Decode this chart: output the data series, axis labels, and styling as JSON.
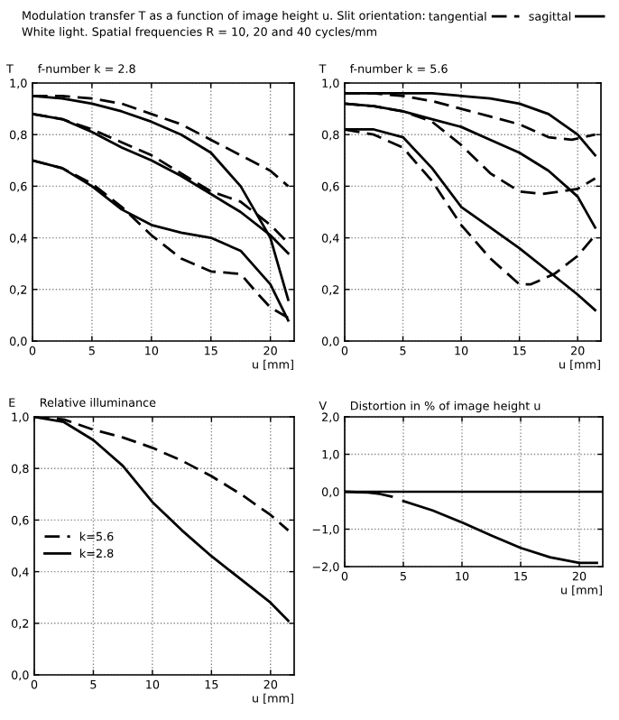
{
  "chart_data": [
    {
      "type": "line",
      "title": "f-number k = 2.8",
      "ylabel": "T",
      "xlabel": "u [mm]",
      "annotations": [
        "Modulation transfer T as a function of image height u. Slit orientation:",
        "White light. Spatial frequencies R = 10, 20 and 40 cycles/mm"
      ],
      "xlim": [
        0,
        22
      ],
      "xticks": [
        0,
        5,
        10,
        15,
        20
      ],
      "ylim": [
        0,
        1
      ],
      "yticks": [
        {
          "value": 0,
          "label": "0,0"
        },
        {
          "value": 0.2,
          "label": "0,2"
        },
        {
          "value": 0.4,
          "label": "0,4"
        },
        {
          "value": 0.6,
          "label": "0,6"
        },
        {
          "value": 0.8,
          "label": "0,8"
        },
        {
          "value": 1,
          "label": "1,0"
        }
      ],
      "grid": true,
      "legend": "top",
      "series": [
        {
          "name": "tangential",
          "color": "#000000",
          "line_style": "dashed",
          "x": [
            0,
            2.5,
            5,
            7.5,
            10,
            12.5,
            15,
            17.5,
            20,
            21.5
          ],
          "values": [
            0.95,
            0.95,
            0.94,
            0.92,
            0.88,
            0.84,
            0.78,
            0.72,
            0.66,
            0.6
          ]
        },
        {
          "name": "sagittal",
          "color": "#000000",
          "line_style": "solid",
          "x": [
            0,
            2.5,
            5,
            7.5,
            10,
            12.5,
            15,
            17.5,
            20,
            21.5
          ],
          "values": [
            0.95,
            0.94,
            0.92,
            0.89,
            0.85,
            0.8,
            0.73,
            0.6,
            0.4,
            0.16
          ]
        },
        {
          "color": "#000000",
          "line_style": "dashed",
          "x": [
            0,
            2.5,
            5,
            7.5,
            10,
            12.5,
            15,
            17.5,
            20,
            21.5
          ],
          "values": [
            0.88,
            0.86,
            0.82,
            0.77,
            0.72,
            0.65,
            0.58,
            0.54,
            0.45,
            0.38
          ]
        },
        {
          "color": "#000000",
          "line_style": "solid",
          "x": [
            0,
            2.5,
            5,
            7.5,
            10,
            12.5,
            15,
            17.5,
            20,
            21.5
          ],
          "values": [
            0.88,
            0.86,
            0.81,
            0.75,
            0.7,
            0.64,
            0.57,
            0.5,
            0.41,
            0.34
          ]
        },
        {
          "color": "#000000",
          "line_style": "dashed",
          "x": [
            0,
            2.5,
            5,
            7.5,
            10,
            12.5,
            15,
            17.5,
            19,
            20,
            21.5
          ],
          "values": [
            0.7,
            0.67,
            0.61,
            0.52,
            0.41,
            0.32,
            0.27,
            0.26,
            0.18,
            0.13,
            0.09
          ]
        },
        {
          "color": "#000000",
          "line_style": "solid",
          "x": [
            0,
            2.5,
            5,
            7.5,
            10,
            12.5,
            15,
            17.5,
            20,
            21.5
          ],
          "values": [
            0.7,
            0.67,
            0.6,
            0.51,
            0.45,
            0.42,
            0.4,
            0.35,
            0.22,
            0.08
          ]
        }
      ]
    },
    {
      "type": "line",
      "title": "f-number k = 5.6",
      "ylabel": "T",
      "xlabel": "u [mm]",
      "xlim": [
        0,
        22
      ],
      "xticks": [
        0,
        5,
        10,
        15,
        20
      ],
      "ylim": [
        0,
        1
      ],
      "yticks": [
        {
          "value": 0,
          "label": "0,0"
        },
        {
          "value": 0.2,
          "label": "0,2"
        },
        {
          "value": 0.4,
          "label": "0,4"
        },
        {
          "value": 0.6,
          "label": "0,6"
        },
        {
          "value": 0.8,
          "label": "0,8"
        },
        {
          "value": 1,
          "label": "1,0"
        }
      ],
      "grid": true,
      "series": [
        {
          "color": "#000000",
          "line_style": "solid",
          "x": [
            0,
            2.5,
            5,
            7.5,
            10,
            12.5,
            15,
            17.5,
            20,
            21.5
          ],
          "values": [
            0.96,
            0.96,
            0.96,
            0.96,
            0.95,
            0.94,
            0.92,
            0.88,
            0.8,
            0.72
          ]
        },
        {
          "color": "#000000",
          "line_style": "dashed",
          "x": [
            0,
            2.5,
            5,
            7.5,
            10,
            12.5,
            15,
            17.5,
            19.5,
            21.5
          ],
          "values": [
            0.96,
            0.96,
            0.95,
            0.93,
            0.9,
            0.87,
            0.84,
            0.79,
            0.78,
            0.8
          ]
        },
        {
          "color": "#000000",
          "line_style": "solid",
          "x": [
            0,
            2.5,
            5,
            7.5,
            10,
            12.5,
            15,
            17.5,
            20,
            21.5
          ],
          "values": [
            0.92,
            0.91,
            0.89,
            0.86,
            0.83,
            0.78,
            0.73,
            0.66,
            0.56,
            0.44
          ]
        },
        {
          "color": "#000000",
          "line_style": "dashed",
          "x": [
            0,
            2.5,
            5,
            7.5,
            10,
            12.5,
            15,
            17,
            20,
            21.5
          ],
          "values": [
            0.92,
            0.91,
            0.89,
            0.85,
            0.76,
            0.65,
            0.58,
            0.57,
            0.59,
            0.63
          ]
        },
        {
          "color": "#000000",
          "line_style": "solid",
          "x": [
            0,
            2.5,
            5,
            7.5,
            10,
            12.5,
            15,
            17.5,
            20,
            21.5
          ],
          "values": [
            0.82,
            0.82,
            0.79,
            0.67,
            0.52,
            0.44,
            0.36,
            0.27,
            0.18,
            0.12
          ]
        },
        {
          "color": "#000000",
          "line_style": "dashed",
          "x": [
            0,
            2.5,
            5,
            7.5,
            10,
            12.5,
            15,
            16,
            18,
            20,
            21.5
          ],
          "values": [
            0.82,
            0.8,
            0.75,
            0.62,
            0.45,
            0.32,
            0.22,
            0.22,
            0.26,
            0.33,
            0.41
          ]
        }
      ]
    },
    {
      "type": "line",
      "title": "Relative illuminance",
      "ylabel": "E",
      "xlabel": "u [mm]",
      "xlim": [
        0,
        22
      ],
      "xticks": [
        0,
        5,
        10,
        15,
        20
      ],
      "ylim": [
        0,
        1
      ],
      "yticks": [
        {
          "value": 0,
          "label": "0,0"
        },
        {
          "value": 0.2,
          "label": "0,2"
        },
        {
          "value": 0.4,
          "label": "0,4"
        },
        {
          "value": 0.6,
          "label": "0,6"
        },
        {
          "value": 0.8,
          "label": "0,8"
        },
        {
          "value": 1,
          "label": "1,0"
        }
      ],
      "grid": true,
      "legend": "center left",
      "series": [
        {
          "name": "k=5.6",
          "color": "#000000",
          "line_style": "dashed",
          "x": [
            0,
            2.5,
            5,
            7.5,
            10,
            12.5,
            15,
            17.5,
            20,
            21.5
          ],
          "values": [
            1.0,
            0.99,
            0.95,
            0.92,
            0.88,
            0.83,
            0.77,
            0.7,
            0.62,
            0.56
          ]
        },
        {
          "name": "k=2.8",
          "color": "#000000",
          "line_style": "solid",
          "x": [
            0,
            2.5,
            5,
            7.5,
            10,
            12.5,
            15,
            17.5,
            20,
            21.5
          ],
          "values": [
            1.0,
            0.98,
            0.91,
            0.81,
            0.67,
            0.56,
            0.46,
            0.37,
            0.28,
            0.21
          ]
        }
      ]
    },
    {
      "type": "line",
      "title": "Distortion in % of image height u",
      "ylabel": "V",
      "xlabel": "u [mm]",
      "xlim": [
        0,
        22
      ],
      "xticks": [
        0,
        5,
        10,
        15,
        20
      ],
      "ylim": [
        -2,
        2
      ],
      "yticks": [
        {
          "value": -2,
          "label": "−2,0"
        },
        {
          "value": -1,
          "label": "−1,0"
        },
        {
          "value": 0,
          "label": "0,0"
        },
        {
          "value": 1,
          "label": "1,0"
        },
        {
          "value": 2,
          "label": "2,0"
        }
      ],
      "grid": true,
      "ref_lines": [
        {
          "axis": "y",
          "value": 0
        }
      ],
      "series": [
        {
          "color": "#000000",
          "line_style": "solid",
          "x": [
            0,
            2,
            3,
            4,
            4.5,
            5,
            7.5,
            10,
            12.5,
            15,
            17.5,
            20,
            21.5
          ],
          "values": [
            0.0,
            -0.02,
            -0.06,
            -0.13,
            null,
            -0.25,
            -0.5,
            -0.82,
            -1.17,
            -1.5,
            -1.75,
            -1.9,
            -1.9
          ]
        }
      ]
    }
  ]
}
